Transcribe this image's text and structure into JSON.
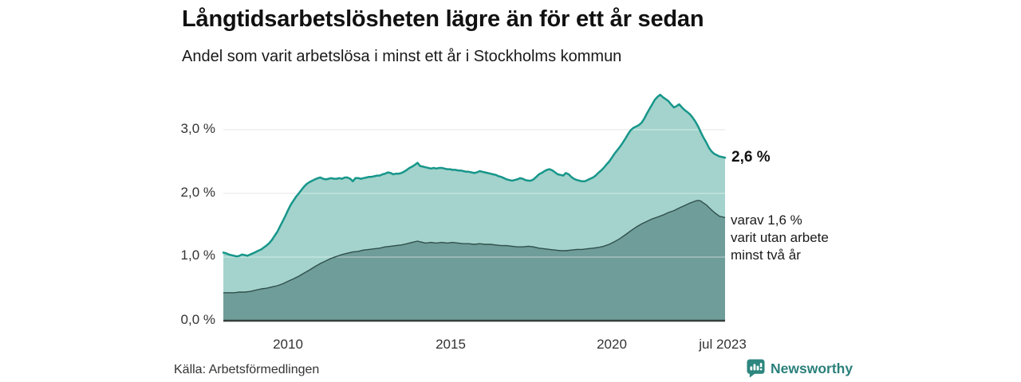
{
  "header": {
    "title": "Långtidsarbetslösheten lägre än för ett år sedan",
    "subtitle": "Andel som varit arbetslösa i minst ett år i Stockholms kommun"
  },
  "annotations": {
    "latest_total": "2,6 %",
    "secondary_line1": "varav 1,6 %",
    "secondary_line2": "varit utan arbete",
    "secondary_line3": "minst två år"
  },
  "footer": {
    "source": "Källa: Arbetsförmedlingen",
    "brand_name": "Newsworthy"
  },
  "colors": {
    "series1_fill": "#a3d3cc",
    "series1_stroke": "#17968a",
    "series2_fill": "#6f9d99",
    "series2_stroke": "#30504c",
    "grid": "#dcdfe5",
    "grid_overlay": "rgba(255,255,255,0.45)",
    "axis_line": "#35403d",
    "brand": "#2d867f"
  },
  "chart_data": {
    "type": "area",
    "title": "Långtidsarbetslösheten lägre än för ett år sedan",
    "subtitle": "Andel som varit arbetslösa i minst ett år i Stockholms kommun",
    "x_unit": "year (monthly data)",
    "x_range": [
      2008.0,
      2023.5
    ],
    "y_range": [
      0,
      3.6
    ],
    "grid": true,
    "x_ticks": [
      {
        "value": 2010,
        "label": "2010"
      },
      {
        "value": 2015,
        "label": "2015"
      },
      {
        "value": 2020,
        "label": "2020"
      },
      {
        "value": 2023.5,
        "label": "jul 2023"
      }
    ],
    "y_ticks": [
      {
        "value": 0,
        "label": "0,0 %"
      },
      {
        "value": 1,
        "label": "1,0 %"
      },
      {
        "value": 2,
        "label": "2,0 %"
      },
      {
        "value": 3,
        "label": "3,0 %"
      }
    ],
    "series": [
      {
        "name": "Andel arbetslösa minst ett år",
        "end_label": "2,6 %",
        "end_value": 2.6,
        "points": [
          [
            2008.0,
            1.07
          ],
          [
            2008.08,
            1.06
          ],
          [
            2008.17,
            1.04
          ],
          [
            2008.25,
            1.03
          ],
          [
            2008.33,
            1.02
          ],
          [
            2008.42,
            1.01
          ],
          [
            2008.5,
            1.02
          ],
          [
            2008.58,
            1.04
          ],
          [
            2008.67,
            1.03
          ],
          [
            2008.75,
            1.02
          ],
          [
            2008.83,
            1.04
          ],
          [
            2008.92,
            1.06
          ],
          [
            2009.0,
            1.08
          ],
          [
            2009.08,
            1.1
          ],
          [
            2009.17,
            1.12
          ],
          [
            2009.25,
            1.15
          ],
          [
            2009.33,
            1.18
          ],
          [
            2009.42,
            1.22
          ],
          [
            2009.5,
            1.27
          ],
          [
            2009.58,
            1.33
          ],
          [
            2009.67,
            1.4
          ],
          [
            2009.75,
            1.48
          ],
          [
            2009.83,
            1.56
          ],
          [
            2009.92,
            1.65
          ],
          [
            2010.0,
            1.74
          ],
          [
            2010.08,
            1.82
          ],
          [
            2010.17,
            1.89
          ],
          [
            2010.25,
            1.95
          ],
          [
            2010.33,
            2.0
          ],
          [
            2010.42,
            2.06
          ],
          [
            2010.5,
            2.11
          ],
          [
            2010.58,
            2.15
          ],
          [
            2010.67,
            2.18
          ],
          [
            2010.75,
            2.2
          ],
          [
            2010.83,
            2.22
          ],
          [
            2010.92,
            2.24
          ],
          [
            2011.0,
            2.25
          ],
          [
            2011.08,
            2.23
          ],
          [
            2011.17,
            2.22
          ],
          [
            2011.25,
            2.23
          ],
          [
            2011.33,
            2.24
          ],
          [
            2011.42,
            2.23
          ],
          [
            2011.5,
            2.23
          ],
          [
            2011.58,
            2.24
          ],
          [
            2011.67,
            2.23
          ],
          [
            2011.75,
            2.25
          ],
          [
            2011.83,
            2.25
          ],
          [
            2011.92,
            2.23
          ],
          [
            2012.0,
            2.19
          ],
          [
            2012.08,
            2.24
          ],
          [
            2012.17,
            2.24
          ],
          [
            2012.25,
            2.23
          ],
          [
            2012.33,
            2.24
          ],
          [
            2012.42,
            2.25
          ],
          [
            2012.5,
            2.26
          ],
          [
            2012.58,
            2.26
          ],
          [
            2012.67,
            2.27
          ],
          [
            2012.75,
            2.28
          ],
          [
            2012.83,
            2.28
          ],
          [
            2012.92,
            2.3
          ],
          [
            2013.0,
            2.31
          ],
          [
            2013.08,
            2.33
          ],
          [
            2013.17,
            2.32
          ],
          [
            2013.25,
            2.3
          ],
          [
            2013.33,
            2.31
          ],
          [
            2013.42,
            2.31
          ],
          [
            2013.5,
            2.32
          ],
          [
            2013.58,
            2.34
          ],
          [
            2013.67,
            2.37
          ],
          [
            2013.75,
            2.4
          ],
          [
            2013.83,
            2.42
          ],
          [
            2013.92,
            2.45
          ],
          [
            2014.0,
            2.48
          ],
          [
            2014.08,
            2.43
          ],
          [
            2014.17,
            2.42
          ],
          [
            2014.25,
            2.41
          ],
          [
            2014.33,
            2.4
          ],
          [
            2014.42,
            2.39
          ],
          [
            2014.5,
            2.4
          ],
          [
            2014.58,
            2.39
          ],
          [
            2014.67,
            2.4
          ],
          [
            2014.75,
            2.4
          ],
          [
            2014.83,
            2.39
          ],
          [
            2014.92,
            2.38
          ],
          [
            2015.0,
            2.38
          ],
          [
            2015.08,
            2.37
          ],
          [
            2015.17,
            2.37
          ],
          [
            2015.25,
            2.36
          ],
          [
            2015.33,
            2.36
          ],
          [
            2015.42,
            2.35
          ],
          [
            2015.5,
            2.34
          ],
          [
            2015.58,
            2.34
          ],
          [
            2015.67,
            2.33
          ],
          [
            2015.75,
            2.32
          ],
          [
            2015.83,
            2.33
          ],
          [
            2015.92,
            2.35
          ],
          [
            2016.0,
            2.34
          ],
          [
            2016.08,
            2.33
          ],
          [
            2016.17,
            2.32
          ],
          [
            2016.25,
            2.31
          ],
          [
            2016.33,
            2.3
          ],
          [
            2016.42,
            2.29
          ],
          [
            2016.5,
            2.27
          ],
          [
            2016.58,
            2.26
          ],
          [
            2016.67,
            2.24
          ],
          [
            2016.75,
            2.22
          ],
          [
            2016.83,
            2.21
          ],
          [
            2016.92,
            2.2
          ],
          [
            2017.0,
            2.21
          ],
          [
            2017.08,
            2.22
          ],
          [
            2017.17,
            2.24
          ],
          [
            2017.25,
            2.23
          ],
          [
            2017.33,
            2.21
          ],
          [
            2017.42,
            2.2
          ],
          [
            2017.5,
            2.2
          ],
          [
            2017.58,
            2.22
          ],
          [
            2017.67,
            2.26
          ],
          [
            2017.75,
            2.3
          ],
          [
            2017.83,
            2.32
          ],
          [
            2017.92,
            2.35
          ],
          [
            2018.0,
            2.37
          ],
          [
            2018.08,
            2.38
          ],
          [
            2018.17,
            2.36
          ],
          [
            2018.25,
            2.33
          ],
          [
            2018.33,
            2.3
          ],
          [
            2018.42,
            2.29
          ],
          [
            2018.5,
            2.28
          ],
          [
            2018.58,
            2.32
          ],
          [
            2018.67,
            2.3
          ],
          [
            2018.75,
            2.26
          ],
          [
            2018.83,
            2.23
          ],
          [
            2018.92,
            2.21
          ],
          [
            2019.0,
            2.2
          ],
          [
            2019.08,
            2.19
          ],
          [
            2019.17,
            2.19
          ],
          [
            2019.25,
            2.21
          ],
          [
            2019.33,
            2.23
          ],
          [
            2019.42,
            2.25
          ],
          [
            2019.5,
            2.28
          ],
          [
            2019.58,
            2.32
          ],
          [
            2019.67,
            2.36
          ],
          [
            2019.75,
            2.4
          ],
          [
            2019.83,
            2.45
          ],
          [
            2019.92,
            2.5
          ],
          [
            2020.0,
            2.56
          ],
          [
            2020.08,
            2.62
          ],
          [
            2020.17,
            2.68
          ],
          [
            2020.25,
            2.73
          ],
          [
            2020.33,
            2.79
          ],
          [
            2020.42,
            2.86
          ],
          [
            2020.5,
            2.93
          ],
          [
            2020.58,
            2.99
          ],
          [
            2020.67,
            3.03
          ],
          [
            2020.75,
            3.05
          ],
          [
            2020.83,
            3.07
          ],
          [
            2020.92,
            3.11
          ],
          [
            2021.0,
            3.17
          ],
          [
            2021.08,
            3.25
          ],
          [
            2021.17,
            3.33
          ],
          [
            2021.25,
            3.4
          ],
          [
            2021.33,
            3.47
          ],
          [
            2021.42,
            3.52
          ],
          [
            2021.5,
            3.55
          ],
          [
            2021.58,
            3.51
          ],
          [
            2021.67,
            3.48
          ],
          [
            2021.75,
            3.45
          ],
          [
            2021.83,
            3.4
          ],
          [
            2021.92,
            3.35
          ],
          [
            2022.0,
            3.37
          ],
          [
            2022.08,
            3.4
          ],
          [
            2022.17,
            3.35
          ],
          [
            2022.25,
            3.31
          ],
          [
            2022.33,
            3.28
          ],
          [
            2022.42,
            3.24
          ],
          [
            2022.5,
            3.19
          ],
          [
            2022.58,
            3.13
          ],
          [
            2022.67,
            3.05
          ],
          [
            2022.75,
            2.96
          ],
          [
            2022.83,
            2.88
          ],
          [
            2022.92,
            2.8
          ],
          [
            2023.0,
            2.72
          ],
          [
            2023.08,
            2.66
          ],
          [
            2023.17,
            2.62
          ],
          [
            2023.25,
            2.6
          ],
          [
            2023.33,
            2.58
          ],
          [
            2023.42,
            2.57
          ],
          [
            2023.5,
            2.56
          ]
        ]
      },
      {
        "name": "varav utan arbete minst två år",
        "end_label": "varav 1,6 % varit utan arbete minst två år",
        "end_value": 1.6,
        "points": [
          [
            2008.0,
            0.44
          ],
          [
            2008.17,
            0.44
          ],
          [
            2008.33,
            0.44
          ],
          [
            2008.5,
            0.45
          ],
          [
            2008.67,
            0.45
          ],
          [
            2008.83,
            0.46
          ],
          [
            2009.0,
            0.48
          ],
          [
            2009.17,
            0.5
          ],
          [
            2009.33,
            0.51
          ],
          [
            2009.5,
            0.53
          ],
          [
            2009.67,
            0.55
          ],
          [
            2009.83,
            0.58
          ],
          [
            2010.0,
            0.62
          ],
          [
            2010.17,
            0.66
          ],
          [
            2010.33,
            0.7
          ],
          [
            2010.5,
            0.75
          ],
          [
            2010.67,
            0.8
          ],
          [
            2010.83,
            0.85
          ],
          [
            2011.0,
            0.9
          ],
          [
            2011.17,
            0.94
          ],
          [
            2011.33,
            0.98
          ],
          [
            2011.5,
            1.01
          ],
          [
            2011.67,
            1.04
          ],
          [
            2011.83,
            1.06
          ],
          [
            2012.0,
            1.08
          ],
          [
            2012.17,
            1.09
          ],
          [
            2012.33,
            1.11
          ],
          [
            2012.5,
            1.12
          ],
          [
            2012.67,
            1.13
          ],
          [
            2012.83,
            1.14
          ],
          [
            2013.0,
            1.16
          ],
          [
            2013.17,
            1.17
          ],
          [
            2013.33,
            1.18
          ],
          [
            2013.5,
            1.19
          ],
          [
            2013.67,
            1.21
          ],
          [
            2013.83,
            1.23
          ],
          [
            2014.0,
            1.25
          ],
          [
            2014.08,
            1.24
          ],
          [
            2014.25,
            1.22
          ],
          [
            2014.42,
            1.23
          ],
          [
            2014.58,
            1.22
          ],
          [
            2014.75,
            1.23
          ],
          [
            2014.92,
            1.22
          ],
          [
            2015.08,
            1.23
          ],
          [
            2015.25,
            1.22
          ],
          [
            2015.42,
            1.21
          ],
          [
            2015.58,
            1.21
          ],
          [
            2015.75,
            1.2
          ],
          [
            2015.92,
            1.21
          ],
          [
            2016.08,
            1.2
          ],
          [
            2016.25,
            1.2
          ],
          [
            2016.42,
            1.19
          ],
          [
            2016.58,
            1.18
          ],
          [
            2016.75,
            1.18
          ],
          [
            2016.92,
            1.17
          ],
          [
            2017.08,
            1.16
          ],
          [
            2017.25,
            1.16
          ],
          [
            2017.42,
            1.17
          ],
          [
            2017.58,
            1.16
          ],
          [
            2017.75,
            1.14
          ],
          [
            2017.92,
            1.13
          ],
          [
            2018.08,
            1.12
          ],
          [
            2018.25,
            1.11
          ],
          [
            2018.42,
            1.1
          ],
          [
            2018.58,
            1.1
          ],
          [
            2018.75,
            1.11
          ],
          [
            2018.92,
            1.12
          ],
          [
            2019.08,
            1.12
          ],
          [
            2019.25,
            1.13
          ],
          [
            2019.42,
            1.14
          ],
          [
            2019.58,
            1.15
          ],
          [
            2019.75,
            1.17
          ],
          [
            2019.92,
            1.2
          ],
          [
            2020.08,
            1.24
          ],
          [
            2020.25,
            1.29
          ],
          [
            2020.42,
            1.35
          ],
          [
            2020.58,
            1.41
          ],
          [
            2020.75,
            1.47
          ],
          [
            2020.92,
            1.52
          ],
          [
            2021.08,
            1.56
          ],
          [
            2021.25,
            1.6
          ],
          [
            2021.42,
            1.63
          ],
          [
            2021.58,
            1.66
          ],
          [
            2021.75,
            1.7
          ],
          [
            2021.92,
            1.73
          ],
          [
            2022.08,
            1.77
          ],
          [
            2022.25,
            1.81
          ],
          [
            2022.42,
            1.85
          ],
          [
            2022.58,
            1.88
          ],
          [
            2022.67,
            1.89
          ],
          [
            2022.75,
            1.88
          ],
          [
            2022.83,
            1.85
          ],
          [
            2022.92,
            1.82
          ],
          [
            2023.0,
            1.78
          ],
          [
            2023.08,
            1.74
          ],
          [
            2023.17,
            1.7
          ],
          [
            2023.25,
            1.67
          ],
          [
            2023.33,
            1.64
          ],
          [
            2023.42,
            1.63
          ],
          [
            2023.5,
            1.62
          ]
        ]
      }
    ]
  }
}
